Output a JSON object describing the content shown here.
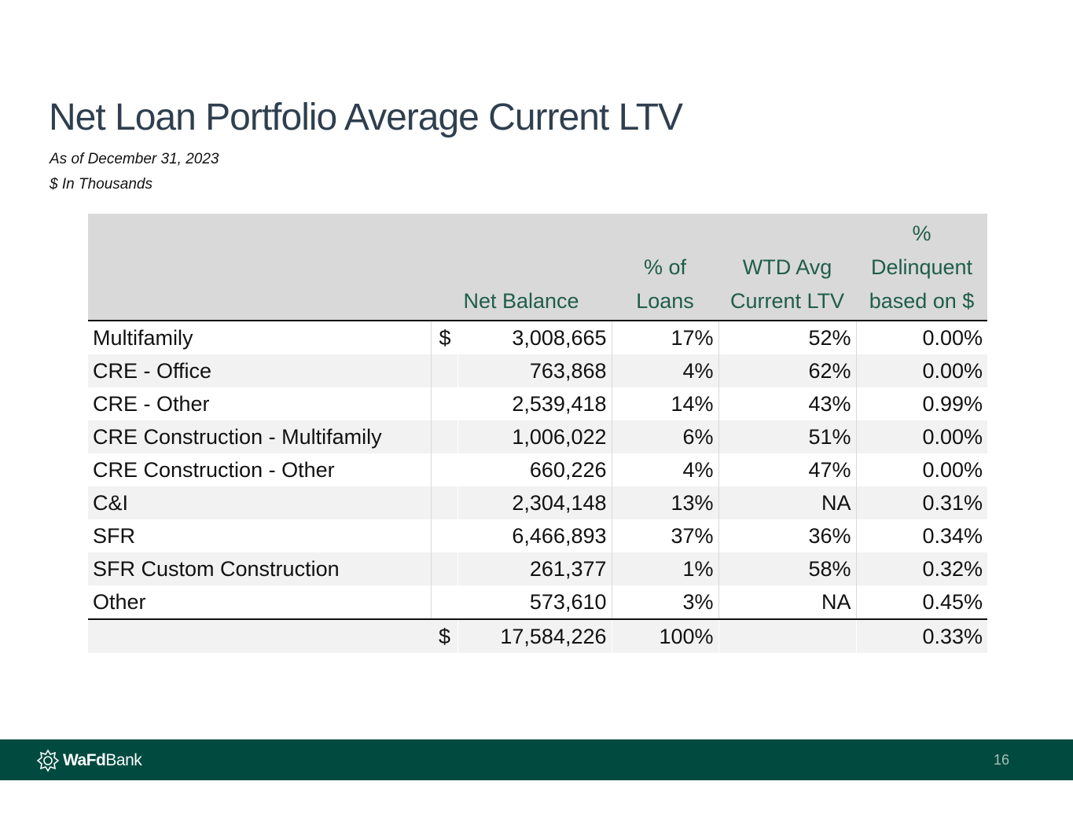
{
  "slide": {
    "title": "Net Loan Portfolio Average Current LTV",
    "subtitle_date": "As of December 31, 2023",
    "subtitle_units": "$ In Thousands",
    "page_number": "16"
  },
  "table": {
    "headers": {
      "net_balance": "Net Balance",
      "pct_loans_1": "% of",
      "pct_loans_2": "Loans",
      "ltv_1": "WTD Avg",
      "ltv_2": "Current LTV",
      "del_1": "%",
      "del_2": "Delinquent",
      "del_3": "based on $"
    },
    "rows": [
      {
        "label": "Multifamily",
        "currency": "$",
        "balance": "3,008,665",
        "pct_loans": "17%",
        "ltv": "52%",
        "delinquent": "0.00%"
      },
      {
        "label": "CRE - Office",
        "currency": "",
        "balance": "763,868",
        "pct_loans": "4%",
        "ltv": "62%",
        "delinquent": "0.00%"
      },
      {
        "label": "CRE - Other",
        "currency": "",
        "balance": "2,539,418",
        "pct_loans": "14%",
        "ltv": "43%",
        "delinquent": "0.99%"
      },
      {
        "label": "CRE Construction - Multifamily",
        "currency": "",
        "balance": "1,006,022",
        "pct_loans": "6%",
        "ltv": "51%",
        "delinquent": "0.00%"
      },
      {
        "label": "CRE Construction - Other",
        "currency": "",
        "balance": "660,226",
        "pct_loans": "4%",
        "ltv": "47%",
        "delinquent": "0.00%"
      },
      {
        "label": "C&I",
        "currency": "",
        "balance": "2,304,148",
        "pct_loans": "13%",
        "ltv": "NA",
        "delinquent": "0.31%"
      },
      {
        "label": "SFR",
        "currency": "",
        "balance": "6,466,893",
        "pct_loans": "37%",
        "ltv": "36%",
        "delinquent": "0.34%"
      },
      {
        "label": "SFR Custom Construction",
        "currency": "",
        "balance": "261,377",
        "pct_loans": "1%",
        "ltv": "58%",
        "delinquent": "0.32%"
      },
      {
        "label": "Other",
        "currency": "",
        "balance": "573,610",
        "pct_loans": "3%",
        "ltv": "NA",
        "delinquent": "0.45%"
      }
    ],
    "total": {
      "currency": "$",
      "balance": "17,584,226",
      "pct_loans": "100%",
      "delinquent": "0.33%"
    }
  },
  "footer": {
    "logo_bold": "WaFd",
    "logo_regular": "Bank",
    "background_color": "#014a3f"
  }
}
